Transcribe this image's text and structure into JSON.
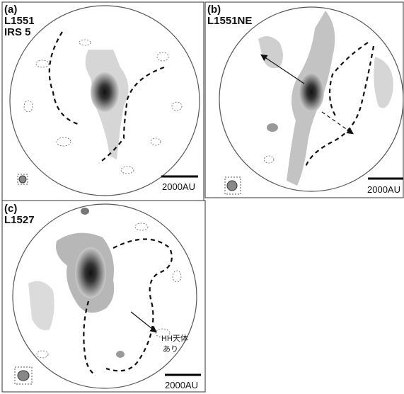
{
  "panels": [
    {
      "label": "(a)",
      "source": [
        "L1551",
        "IRS 5"
      ],
      "scale_bar": "2000AU"
    },
    {
      "label": "(b)",
      "source": [
        "L1551NE"
      ],
      "scale_bar": "2000AU"
    },
    {
      "label": "(c)",
      "source": [
        "L1527"
      ],
      "scale_bar": "2000AU",
      "annotation": [
        "HH天体",
        "あり"
      ]
    }
  ]
}
